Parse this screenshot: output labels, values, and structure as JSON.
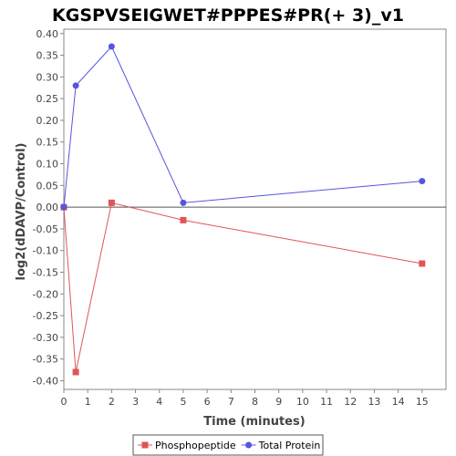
{
  "chart_data": {
    "type": "line",
    "title": "KGSPVSEIGWET#PPPES#PR(+ 3)_v1",
    "xlabel": "Time (minutes)",
    "ylabel": "log2(dDAVP/Control)",
    "xlim": [
      0,
      16
    ],
    "ylim": [
      -0.42,
      0.41
    ],
    "xticks": [
      0,
      1,
      2,
      3,
      4,
      5,
      6,
      7,
      8,
      9,
      10,
      11,
      12,
      13,
      14,
      15
    ],
    "yticks": [
      0.4,
      0.35,
      0.3,
      0.25,
      0.2,
      0.15,
      0.1,
      0.05,
      0.0,
      -0.05,
      -0.1,
      -0.15,
      -0.2,
      -0.25,
      -0.3,
      -0.35,
      -0.4
    ],
    "ytick_labels": [
      "0.40",
      "0.35",
      "0.30",
      "0.25",
      "0.20",
      "0.15",
      "0.10",
      "0.05",
      "0.00",
      "-0.05",
      "-0.10",
      "-0.15",
      "-0.20",
      "-0.25",
      "-0.30",
      "-0.35",
      "-0.40"
    ],
    "grid": false,
    "legend_position": "bottom",
    "series": [
      {
        "name": "Phosphopeptide",
        "color": "#e05555",
        "marker": "square",
        "x": [
          0,
          0.5,
          2,
          5,
          15
        ],
        "y": [
          0.0,
          -0.38,
          0.01,
          -0.03,
          -0.13
        ]
      },
      {
        "name": "Total Protein",
        "color": "#5555e0",
        "marker": "circle",
        "x": [
          0,
          0.5,
          2,
          5,
          15
        ],
        "y": [
          0.0,
          0.28,
          0.37,
          0.01,
          0.06
        ]
      }
    ]
  }
}
